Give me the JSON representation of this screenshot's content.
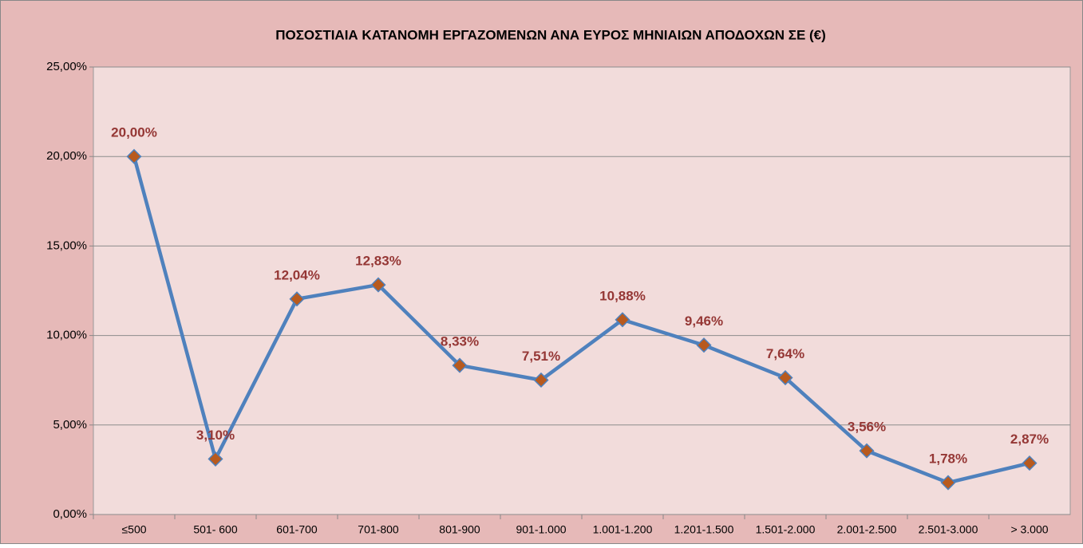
{
  "chart_data": {
    "type": "line",
    "title": "ΠΟΣΟΣΤΙΑΙΑ ΚΑΤΑΝΟΜΗ ΕΡΓΑΖΟΜΕΝΩΝ ΑΝΑ ΕΥΡΟΣ ΜΗΝΙΑΙΩΝ ΑΠΟΔΟΧΩΝ ΣΕ (€)",
    "categories": [
      "≤500",
      "501- 600",
      "601-700",
      "701-800",
      "801-900",
      "901-1.000",
      "1.001-1.200",
      "1.201-1.500",
      "1.501-2.000",
      "2.001-2.500",
      "2.501-3.000",
      "> 3.000"
    ],
    "values": [
      20.0,
      3.1,
      12.04,
      12.83,
      8.33,
      7.51,
      10.88,
      9.46,
      7.64,
      3.56,
      1.78,
      2.87
    ],
    "value_labels": [
      "20,00%",
      "3,10%",
      "12,04%",
      "12,83%",
      "8,33%",
      "7,51%",
      "10,88%",
      "9,46%",
      "7,64%",
      "3,56%",
      "1,78%",
      "2,87%"
    ],
    "color": "#4f81bd",
    "marker_color": "#b85a1e",
    "ylim": [
      0,
      25
    ],
    "yticks": [
      {
        "value": 0,
        "label": "0,00%"
      },
      {
        "value": 5,
        "label": "5,00%"
      },
      {
        "value": 10,
        "label": "10,00%"
      },
      {
        "value": 15,
        "label": "15,00%"
      },
      {
        "value": 20,
        "label": "20,00%"
      },
      {
        "value": 25,
        "label": "25,00%"
      }
    ],
    "grid": true
  }
}
